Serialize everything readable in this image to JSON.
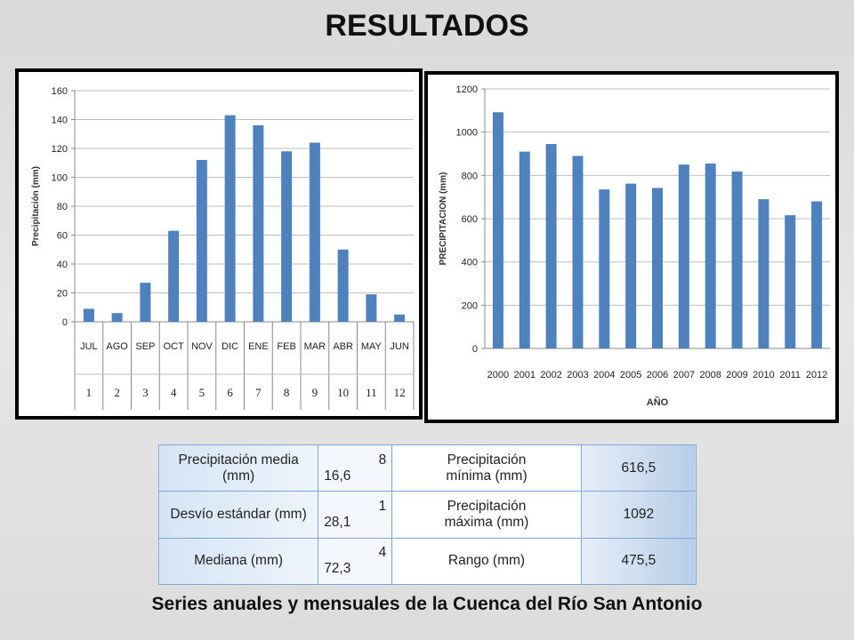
{
  "page_title": "RESULTADOS",
  "caption": "Series anuales y mensuales de la Cuenca del Río San Antonio",
  "chart_data": [
    {
      "type": "bar",
      "ylabel": "Precipitación (mm)",
      "xlabel": "",
      "ylim": [
        0,
        160
      ],
      "yticks": [
        0,
        20,
        40,
        60,
        80,
        100,
        120,
        140,
        160
      ],
      "categories": [
        "JUL",
        "AGO",
        "SEP",
        "OCT",
        "NOV",
        "DIC",
        "ENE",
        "FEB",
        "MAR",
        "ABR",
        "MAY",
        "JUN"
      ],
      "category_numbers": [
        "1",
        "2",
        "3",
        "4",
        "5",
        "6",
        "7",
        "8",
        "9",
        "10",
        "11",
        "12"
      ],
      "values": [
        9,
        6,
        27,
        63,
        112,
        143,
        136,
        118,
        124,
        50,
        19,
        5
      ],
      "color": "#4f81bd",
      "grid": true
    },
    {
      "type": "bar",
      "ylabel": "PRECIPITACION (mm)",
      "xlabel": "AÑO",
      "ylim": [
        0,
        1200
      ],
      "yticks": [
        0,
        200,
        400,
        600,
        800,
        1000,
        1200
      ],
      "categories": [
        "2000",
        "2001",
        "2002",
        "2003",
        "2004",
        "2005",
        "2006",
        "2007",
        "2008",
        "2009",
        "2010",
        "2011",
        "2012"
      ],
      "values": [
        1092,
        910,
        945,
        890,
        735,
        762,
        742,
        850,
        855,
        818,
        690,
        616,
        680
      ],
      "color": "#4f81bd",
      "grid": true
    }
  ],
  "stats_table": [
    {
      "label": "Precipitación media (mm)",
      "v1a": "8",
      "v1b": "16,6",
      "label2a": "Precipitación",
      "label2b": "mínima (mm)",
      "value2": "616,5"
    },
    {
      "label": "Desvío estándar (mm)",
      "v1a": "1",
      "v1b": "28,1",
      "label2a": "Precipitación",
      "label2b": "máxima (mm)",
      "value2": "1092"
    },
    {
      "label": "Mediana (mm)",
      "v1a": "4",
      "v1b": "72,3",
      "label2a": "Rango (mm)",
      "label2b": "",
      "value2": "475,5"
    }
  ]
}
